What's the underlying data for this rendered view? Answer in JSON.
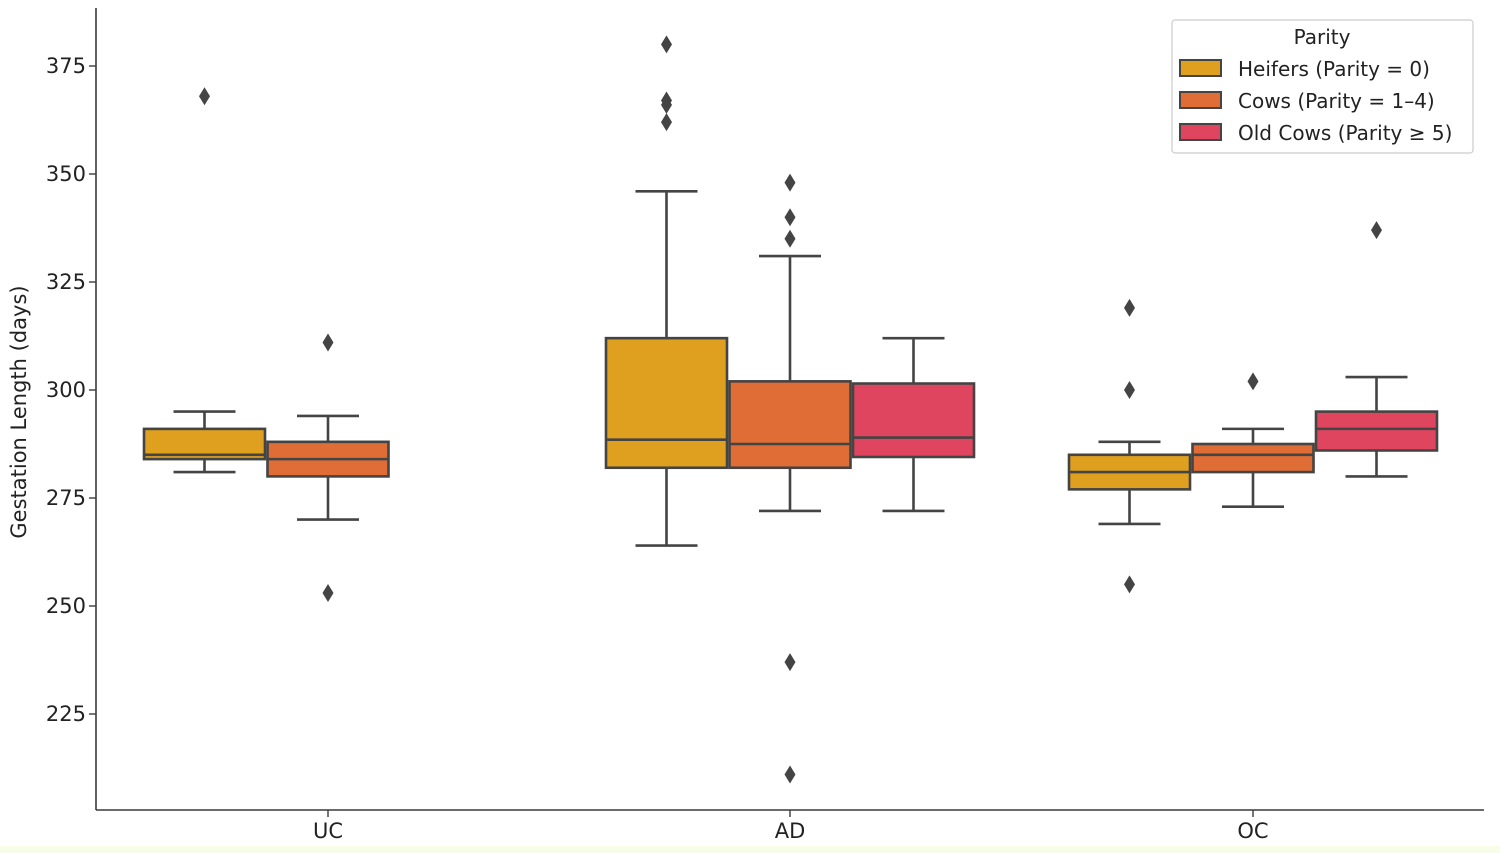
{
  "chart_data": {
    "type": "box",
    "title": "",
    "xlabel": "",
    "ylabel": "Gestation Length (days)",
    "ylim": [
      200,
      385
    ],
    "yticks": [
      225,
      250,
      275,
      300,
      325,
      350,
      375
    ],
    "categories": [
      "UC",
      "AD",
      "OC"
    ],
    "grid": false,
    "legend": {
      "title": "Parity",
      "position": "top-right"
    },
    "series": [
      {
        "name": "Heifers (Parity = 0)",
        "color": "#dfa01f",
        "boxes": [
          {
            "whislo": 281,
            "q1": 284,
            "med": 285,
            "q3": 291,
            "whishi": 295,
            "fliers": [
              368
            ]
          },
          {
            "whislo": 264,
            "q1": 282,
            "med": 288.5,
            "q3": 312,
            "whishi": 346,
            "fliers": [
              362,
              366,
              367,
              380
            ]
          },
          {
            "whislo": 269,
            "q1": 277,
            "med": 281,
            "q3": 285,
            "whishi": 288,
            "fliers": [
              255,
              300,
              319
            ]
          }
        ]
      },
      {
        "name": "Cows (Parity = 1–4)",
        "color": "#df6d35",
        "boxes": [
          {
            "whislo": 270,
            "q1": 280,
            "med": 284,
            "q3": 288,
            "whishi": 294,
            "fliers": [
              253,
              311
            ]
          },
          {
            "whislo": 272,
            "q1": 282,
            "med": 287.5,
            "q3": 302,
            "whishi": 331,
            "fliers": [
              211,
              237,
              335,
              340,
              348
            ]
          },
          {
            "whislo": 273,
            "q1": 281,
            "med": 285,
            "q3": 287.5,
            "whishi": 291,
            "fliers": [
              302
            ]
          }
        ]
      },
      {
        "name": "Old Cows (Parity ≥ 5)",
        "color": "#e0455f",
        "boxes": [
          null,
          {
            "whislo": 272,
            "q1": 284.5,
            "med": 289,
            "q3": 301.5,
            "whishi": 312,
            "fliers": []
          },
          {
            "whislo": 280,
            "q1": 286,
            "med": 291,
            "q3": 295,
            "whishi": 303,
            "fliers": [
              337
            ]
          }
        ]
      }
    ]
  }
}
